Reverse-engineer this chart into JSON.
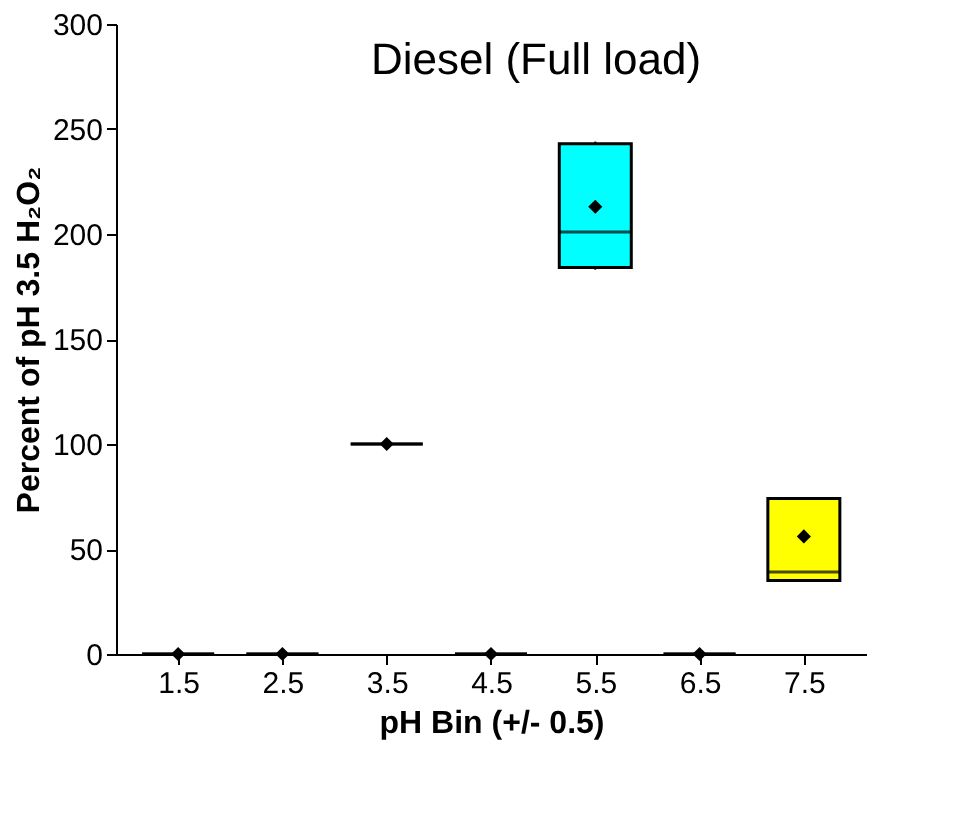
{
  "chart_data": {
    "type": "box",
    "title": "Diesel (Full load)",
    "xlabel": "pH Bin (+/- 0.5)",
    "ylabel": "Percent of pH 3.5 H₂O₂",
    "categories": [
      "1.5",
      "2.5",
      "3.5",
      "4.5",
      "5.5",
      "6.5",
      "7.5"
    ],
    "boxes": [
      {
        "low": 0,
        "q1": 0,
        "median": 0,
        "q3": 0,
        "high": 0,
        "mean": 0
      },
      {
        "low": 0,
        "q1": 0,
        "median": 0,
        "q3": 0,
        "high": 0,
        "mean": 0
      },
      {
        "low": 100,
        "q1": 100,
        "median": 100,
        "q3": 100,
        "high": 100,
        "mean": 100
      },
      {
        "low": 0,
        "q1": 0,
        "median": 0,
        "q3": 0,
        "high": 0,
        "mean": 0
      },
      {
        "low": 183,
        "q1": 184,
        "median": 201,
        "q3": 243,
        "high": 244,
        "mean": 213
      },
      {
        "low": 0,
        "q1": 0,
        "median": 0,
        "q3": 0,
        "high": 0,
        "mean": 0
      },
      {
        "low": 35,
        "q1": 35,
        "median": 39,
        "q3": 74,
        "high": 74,
        "mean": 56
      }
    ],
    "colors": [
      "#000000",
      "#000000",
      "#000000",
      "#000000",
      "#00ffff",
      "#000000",
      "#ffff00"
    ],
    "ylim": [
      0,
      300
    ],
    "yticks": [
      0,
      50,
      100,
      150,
      200,
      250,
      300
    ],
    "grid": false,
    "marker": "diamond"
  }
}
